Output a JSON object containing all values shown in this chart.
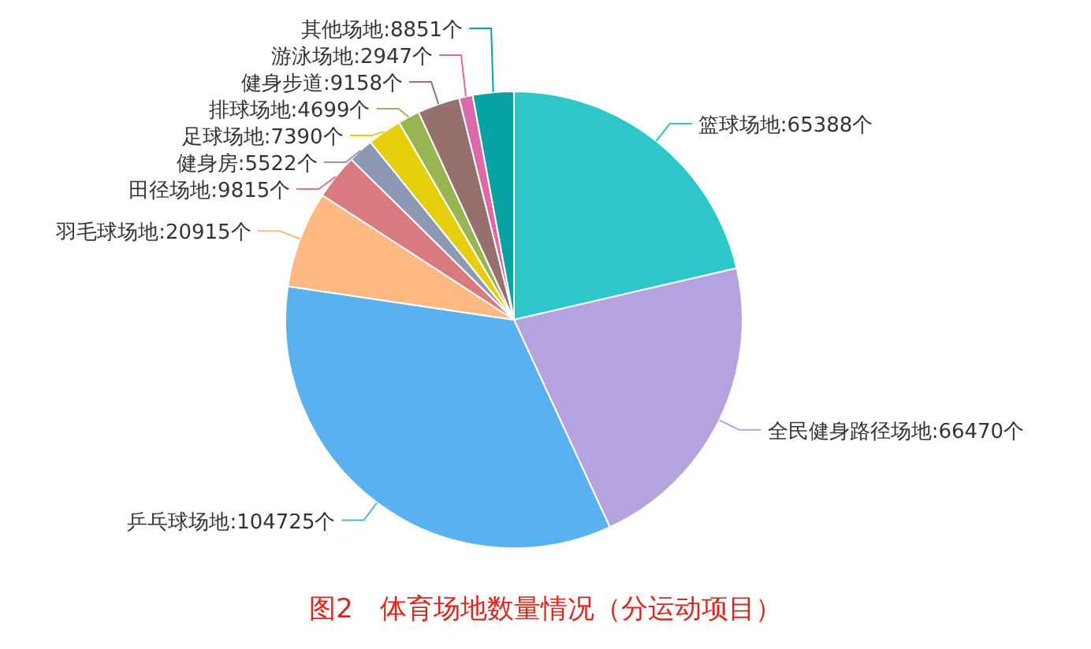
{
  "chart_data": {
    "type": "pie",
    "title": "图2　体育场地数量情况（分运动项目）",
    "categories": [
      "篮球场地",
      "全民健身路径场地",
      "乒乓球场地",
      "羽毛球场地",
      "田径场地",
      "健身房",
      "足球场地",
      "排球场地",
      "健身步道",
      "游泳场地",
      "其他场地"
    ],
    "values": [
      65388,
      66470,
      104725,
      20915,
      9815,
      5522,
      7390,
      4699,
      9158,
      2947,
      8851
    ],
    "value_labels": [
      "65388个",
      "66470个",
      "104725个",
      "20915个",
      "9815个",
      "5522个",
      "7390个",
      "4699个",
      "9158个",
      "2947个",
      "8851个"
    ],
    "colors": [
      "#2ec7c9",
      "#b6a2de",
      "#5ab1ef",
      "#ffb980",
      "#d87a80",
      "#8d98b3",
      "#e5cf0d",
      "#97b552",
      "#95706d",
      "#dc69aa",
      "#07a2a4"
    ]
  }
}
